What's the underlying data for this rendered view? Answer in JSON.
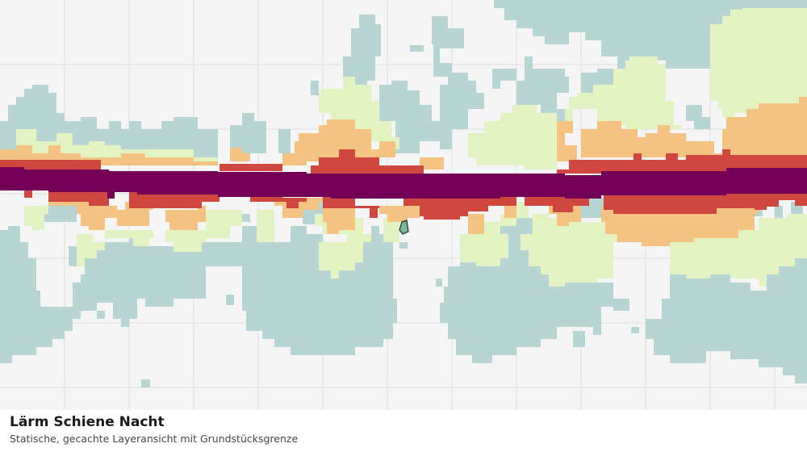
{
  "map": {
    "layer_colors": {
      "background": "#f4f5f4",
      "grid": "#dedfdf",
      "level_1": "#b7d6d3",
      "level_2": "#e3f2c1",
      "level_3": "#f4c281",
      "level_4": "#d0473f",
      "level_5": "#730056",
      "parcel_fill": "#79b49c",
      "parcel_outline": "#1e2b25"
    },
    "icons": [
      "parcel-boundary-marker"
    ]
  },
  "caption": {
    "title": "Lärm Schiene Nacht",
    "subtitle": "Statische, gecachte Layeransicht mit Grundstücksgrenze"
  }
}
